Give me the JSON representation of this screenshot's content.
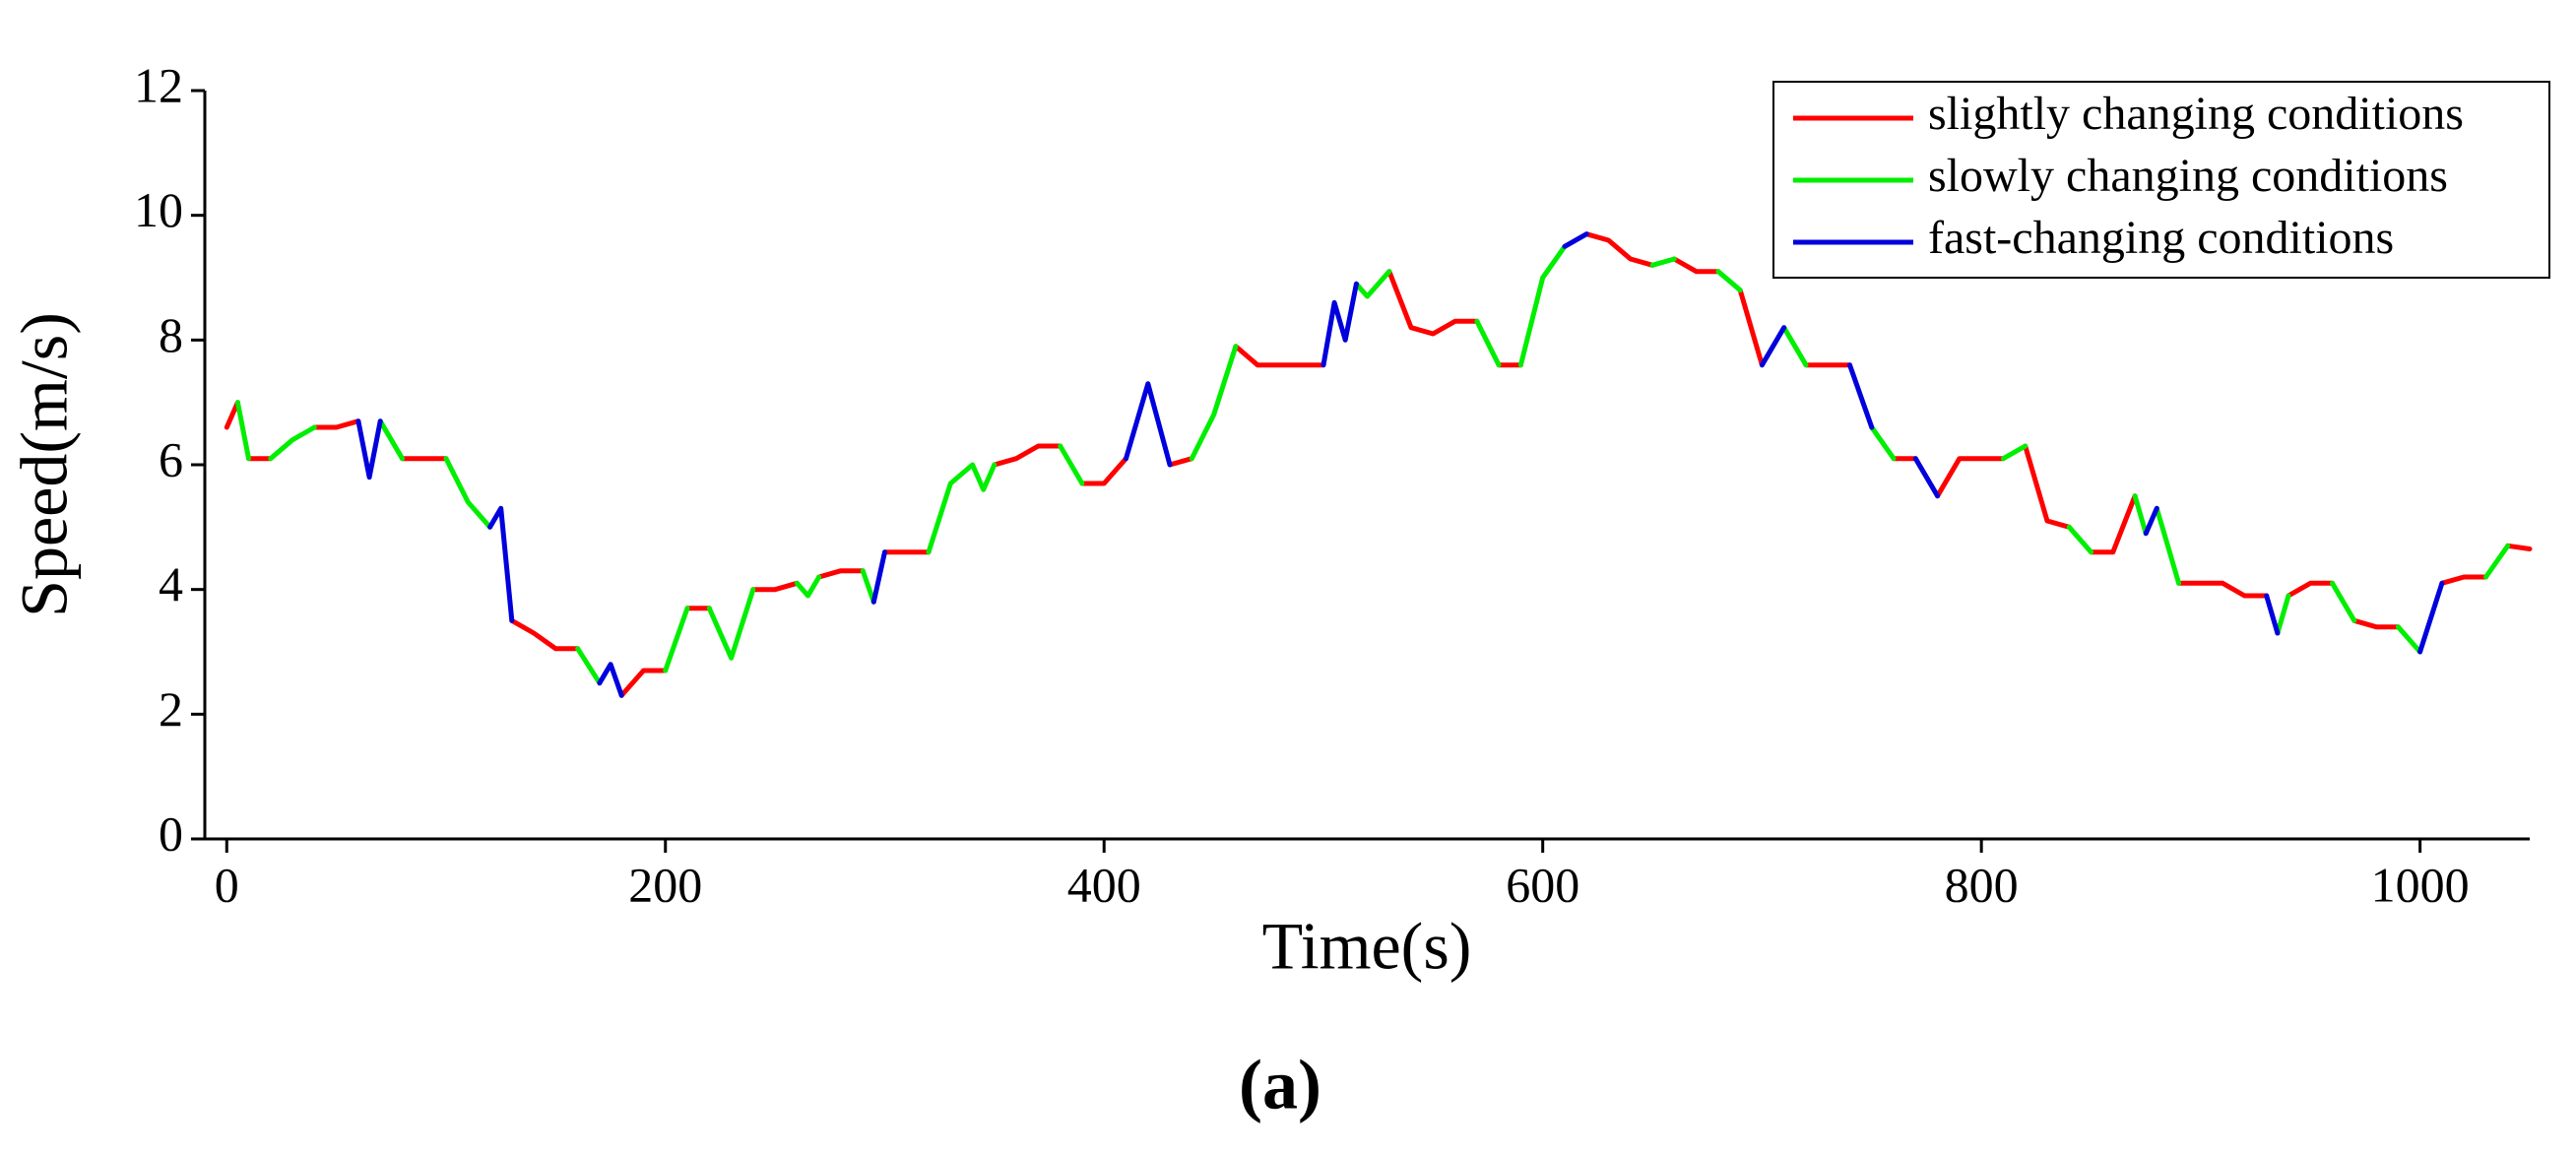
{
  "chart_data": {
    "type": "line",
    "xlabel": "Time(s)",
    "ylabel": "Speed(m/s)",
    "caption": "(a)",
    "xlim": [
      -10,
      1050
    ],
    "xticks": [
      0,
      200,
      400,
      600,
      800,
      1000
    ],
    "ylim": [
      0,
      12
    ],
    "yticks": [
      0,
      2,
      4,
      6,
      8,
      10,
      12
    ],
    "legend": "upper right",
    "series": [
      {
        "name": "slightly changing conditions",
        "color": "#ff0000",
        "x": [
          0,
          5,
          null,
          10,
          20,
          null,
          40,
          50,
          60,
          null,
          80,
          90,
          100,
          null,
          130,
          140,
          150,
          160,
          null,
          180,
          190,
          200,
          null,
          210,
          220,
          null,
          240,
          250,
          260,
          null,
          270,
          280,
          290,
          null,
          300,
          310,
          320,
          null,
          350,
          360,
          370,
          380,
          null,
          390,
          400,
          410,
          null,
          430,
          440,
          null,
          460,
          470,
          480,
          490,
          500,
          null,
          530,
          540,
          550,
          560,
          570,
          null,
          580,
          590,
          null,
          620,
          630,
          640,
          650,
          null,
          660,
          670,
          680,
          null,
          690,
          700,
          null,
          720,
          730,
          740,
          null,
          760,
          770,
          null,
          780,
          790,
          800,
          810,
          null,
          820,
          830,
          840,
          null,
          850,
          860,
          870,
          null,
          890,
          900,
          910,
          920,
          930,
          null,
          940,
          950,
          960,
          null,
          970,
          980,
          990,
          null,
          1010,
          1020,
          1030,
          null,
          1040,
          1050
        ],
        "values": [
          6.6,
          7.0,
          null,
          6.1,
          6.1,
          null,
          6.6,
          6.6,
          6.7,
          null,
          6.1,
          6.1,
          6.1,
          null,
          3.5,
          3.3,
          3.05,
          3.05,
          null,
          2.3,
          2.7,
          2.7,
          null,
          3.7,
          3.7,
          null,
          4.0,
          4.0,
          4.1,
          null,
          4.2,
          4.3,
          4.3,
          null,
          4.6,
          4.6,
          4.6,
          null,
          6.0,
          6.1,
          6.3,
          6.3,
          null,
          5.7,
          5.7,
          6.1,
          null,
          6.0,
          6.1,
          null,
          7.9,
          7.6,
          7.6,
          7.6,
          7.6,
          null,
          9.1,
          8.2,
          8.1,
          8.3,
          8.3,
          null,
          7.6,
          7.6,
          null,
          9.7,
          9.6,
          9.3,
          9.2,
          null,
          9.3,
          9.1,
          9.1,
          null,
          8.8,
          7.6,
          null,
          7.6,
          7.6,
          7.6,
          null,
          6.1,
          6.1,
          null,
          5.5,
          6.1,
          6.1,
          6.1,
          null,
          6.3,
          5.1,
          5.0,
          null,
          4.6,
          4.6,
          5.5,
          null,
          4.1,
          4.1,
          4.1,
          3.9,
          3.9,
          null,
          3.9,
          4.1,
          4.1,
          null,
          3.5,
          3.4,
          3.4,
          null,
          4.1,
          4.2,
          4.2,
          null,
          4.7,
          4.65
        ]
      },
      {
        "name": "slowly changing conditions",
        "color": "#00ee00",
        "x": [
          5,
          10,
          null,
          20,
          30,
          40,
          null,
          70,
          80,
          null,
          100,
          110,
          120,
          null,
          160,
          170,
          null,
          200,
          210,
          null,
          220,
          230,
          240,
          null,
          260,
          265,
          270,
          null,
          290,
          295,
          null,
          320,
          330,
          340,
          345,
          350,
          null,
          380,
          390,
          null,
          440,
          450,
          460,
          null,
          515,
          520,
          530,
          null,
          570,
          580,
          null,
          590,
          600,
          610,
          null,
          650,
          660,
          null,
          680,
          690,
          null,
          710,
          720,
          null,
          750,
          760,
          null,
          810,
          820,
          null,
          840,
          850,
          null,
          870,
          875,
          null,
          880,
          890,
          null,
          935,
          940,
          null,
          960,
          970,
          null,
          990,
          1000,
          null,
          1030,
          1040
        ],
        "values": [
          7.0,
          6.1,
          null,
          6.1,
          6.4,
          6.6,
          null,
          6.7,
          6.1,
          null,
          6.1,
          5.4,
          5.0,
          null,
          3.05,
          2.5,
          null,
          2.7,
          3.7,
          null,
          3.7,
          2.9,
          4.0,
          null,
          4.1,
          3.9,
          4.2,
          null,
          4.3,
          3.8,
          null,
          4.6,
          5.7,
          6.0,
          5.6,
          6.0,
          null,
          6.3,
          5.7,
          null,
          6.1,
          6.8,
          7.9,
          null,
          8.9,
          8.7,
          9.1,
          null,
          8.3,
          7.6,
          null,
          7.6,
          9.0,
          9.5,
          null,
          9.2,
          9.3,
          null,
          9.1,
          8.8,
          null,
          8.2,
          7.6,
          null,
          6.6,
          6.1,
          null,
          6.1,
          6.3,
          null,
          5.0,
          4.6,
          null,
          5.5,
          4.9,
          null,
          5.3,
          4.1,
          null,
          3.3,
          3.9,
          null,
          4.1,
          3.5,
          null,
          3.4,
          3.0,
          null,
          4.2,
          4.7
        ]
      },
      {
        "name": "fast-changing conditions",
        "color": "#0000dd",
        "x": [
          60,
          65,
          70,
          null,
          120,
          125,
          130,
          null,
          170,
          175,
          180,
          null,
          295,
          300,
          null,
          410,
          420,
          430,
          null,
          500,
          505,
          510,
          515,
          null,
          610,
          620,
          null,
          700,
          710,
          null,
          740,
          750,
          null,
          770,
          780,
          null,
          875,
          880,
          null,
          930,
          935,
          null,
          1000,
          1010
        ],
        "values": [
          6.7,
          5.8,
          6.7,
          null,
          5.0,
          5.3,
          3.5,
          null,
          2.5,
          2.8,
          2.3,
          null,
          3.8,
          4.6,
          null,
          6.1,
          7.3,
          6.0,
          null,
          7.6,
          8.6,
          8.0,
          8.9,
          null,
          9.5,
          9.7,
          null,
          7.6,
          8.2,
          null,
          7.6,
          6.6,
          null,
          6.1,
          5.5,
          null,
          4.9,
          5.3,
          null,
          3.9,
          3.3,
          null,
          3.0,
          4.1
        ]
      }
    ]
  }
}
